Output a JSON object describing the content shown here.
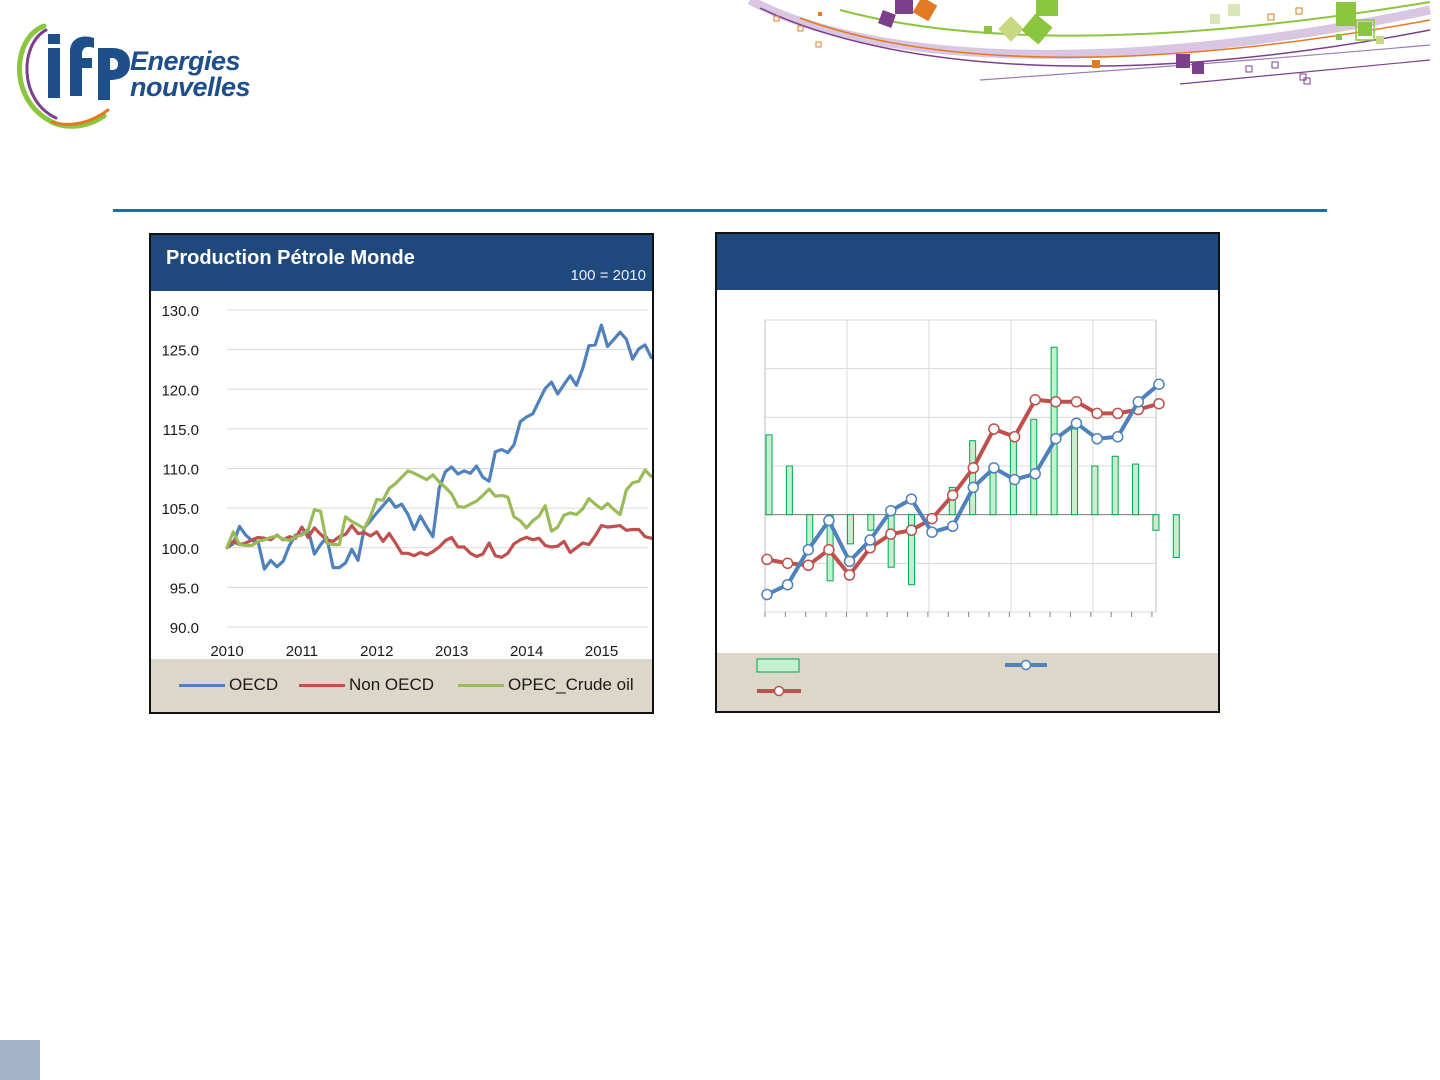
{
  "brand": {
    "logo_text_line1": "Energies",
    "logo_text_line2": "nouvelles",
    "logo_mark": "ifp",
    "colors": {
      "navy": "#1f4f8a",
      "green": "#8cc63f",
      "purple": "#7b3f8c",
      "orange": "#e07b24"
    }
  },
  "left_panel": {
    "title": "Production Pétrole Monde",
    "note": "100 = 2010",
    "header_color": "#1f497d",
    "legend": [
      {
        "name": "OECD",
        "color": "#4f81bd"
      },
      {
        "name": "Non OECD",
        "color": "#c0504d"
      },
      {
        "name": "OPEC_Crude oil",
        "color": "#9bbb59"
      }
    ]
  },
  "right_panel": {
    "title": "",
    "header_color": "#1f497d"
  },
  "chart_data": [
    {
      "type": "line",
      "title": "Production Pétrole Monde",
      "subtitle": "100 = 2010",
      "x_tick_labels": [
        "2010",
        "2011",
        "2012",
        "2013",
        "2014",
        "2015"
      ],
      "y_tick_labels": [
        "130.0",
        "125.0",
        "120.0",
        "115.0",
        "110.0",
        "105.0",
        "100.0",
        "95.0",
        "90.0"
      ],
      "ylim": [
        90,
        130
      ],
      "xlim": [
        2010,
        2015.62
      ],
      "grid": "horizontal",
      "legend_position": "bottom",
      "series": [
        {
          "name": "OECD",
          "color": "#4f81bd",
          "x_start": 2010,
          "x_step": 0.0833,
          "values": [
            100.0,
            100.5,
            102.7,
            101.6,
            100.9,
            100.7,
            97.3,
            98.4,
            97.6,
            98.3,
            100.3,
            101.6,
            101.7,
            102.3,
            99.2,
            100.4,
            101.3,
            97.5,
            97.5,
            98.1,
            99.8,
            98.4,
            102.5,
            103.4,
            104.4,
            105.3,
            106.2,
            105.1,
            105.5,
            104.2,
            102.3,
            104.0,
            102.6,
            101.4,
            107.5,
            109.6,
            110.2,
            109.3,
            109.7,
            109.4,
            110.3,
            108.9,
            108.4,
            112.1,
            112.4,
            112.0,
            113.0,
            115.9,
            116.5,
            116.9,
            118.5,
            120.1,
            120.9,
            119.4,
            120.6,
            121.7,
            120.5,
            122.6,
            125.5,
            125.6,
            128.1,
            125.4,
            126.3,
            127.2,
            126.3,
            123.8,
            125.1,
            125.6,
            124.0
          ]
        },
        {
          "name": "Non OECD",
          "color": "#c0504d",
          "x_start": 2010,
          "x_step": 0.0833,
          "values": [
            100.0,
            100.8,
            100.4,
            100.6,
            101.0,
            101.3,
            101.2,
            101.0,
            101.6,
            101.0,
            101.4,
            101.2,
            102.6,
            101.3,
            102.5,
            101.7,
            101.0,
            100.8,
            101.4,
            101.7,
            102.8,
            101.8,
            101.9,
            101.5,
            102.0,
            100.8,
            101.8,
            100.6,
            99.3,
            99.3,
            99.0,
            99.4,
            99.1,
            99.5,
            100.1,
            100.9,
            101.3,
            100.1,
            100.1,
            99.3,
            98.9,
            99.2,
            100.6,
            99.0,
            98.8,
            99.3,
            100.5,
            101.0,
            101.3,
            101.0,
            101.2,
            100.3,
            100.1,
            100.2,
            100.8,
            99.4,
            100.0,
            100.6,
            100.4,
            101.5,
            102.8,
            102.6,
            102.7,
            102.8,
            102.2,
            102.3,
            102.3,
            101.4,
            101.2
          ]
        },
        {
          "name": "OPEC_Crude oil",
          "color": "#9bbb59",
          "x_start": 2010,
          "x_step": 0.0833,
          "values": [
            100.0,
            102.0,
            100.4,
            100.3,
            100.3,
            100.8,
            101.0,
            101.3,
            101.5,
            101.1,
            100.9,
            101.4,
            101.6,
            102.2,
            104.8,
            104.6,
            100.6,
            100.4,
            100.4,
            103.9,
            103.3,
            102.9,
            102.4,
            104.0,
            106.1,
            106.0,
            107.5,
            108.1,
            108.9,
            109.7,
            109.4,
            109.0,
            108.6,
            109.2,
            108.3,
            107.6,
            106.8,
            105.2,
            105.1,
            105.5,
            105.9,
            106.6,
            107.4,
            106.5,
            106.6,
            106.4,
            103.9,
            103.4,
            102.5,
            103.4,
            104.0,
            105.3,
            102.1,
            102.6,
            104.1,
            104.4,
            104.2,
            104.9,
            106.2,
            105.5,
            104.9,
            105.6,
            104.8,
            104.2,
            107.3,
            108.2,
            108.4,
            109.8,
            109.0
          ]
        }
      ]
    },
    {
      "type": "bar",
      "title": "",
      "note": "combined bar + line chart with unlabeled axes; values are relative estimates",
      "ylim": [
        -5,
        10
      ],
      "grid": "both",
      "legend_position": "bottom",
      "series": [
        {
          "name": "",
          "kind": "bar",
          "color": "#c6efce",
          "edge_color": "#00a651",
          "values": [
            4.1,
            2.5,
            -1.6,
            -3.4,
            -1.5,
            -0.8,
            -2.7,
            -3.6,
            0,
            1.4,
            3.8,
            2.6,
            4.2,
            4.9,
            8.6,
            4.4,
            2.5,
            3.0,
            2.6,
            -0.8,
            -2.2
          ]
        },
        {
          "name": "",
          "kind": "line",
          "color": "#4f81bd",
          "values": [
            -4.1,
            -3.6,
            -1.8,
            -0.3,
            -2.4,
            -1.3,
            0.2,
            0.8,
            -0.9,
            -0.6,
            1.4,
            2.4,
            1.8,
            2.1,
            3.9,
            4.7,
            3.9,
            4.0,
            5.8,
            6.7
          ]
        },
        {
          "name": "",
          "kind": "line",
          "color": "#c0504d",
          "values": [
            -2.3,
            -2.5,
            -2.6,
            -1.8,
            -3.1,
            -1.7,
            -1.0,
            -0.8,
            -0.2,
            1.0,
            2.4,
            4.4,
            4.0,
            5.9,
            5.8,
            5.8,
            5.2,
            5.2,
            5.4,
            5.7
          ]
        }
      ]
    }
  ]
}
